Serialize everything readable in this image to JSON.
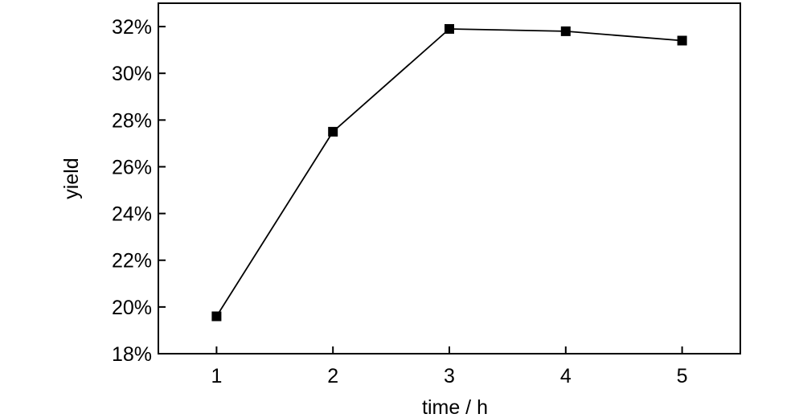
{
  "chart_data": {
    "type": "line",
    "title": "",
    "xlabel": "time / h",
    "ylabel": "yield",
    "x": [
      1,
      2,
      3,
      4,
      5
    ],
    "xticks": [
      "1",
      "2",
      "3",
      "4",
      "5"
    ],
    "xlim": [
      0.5,
      5.5
    ],
    "ylim": [
      18,
      33
    ],
    "yticks": [
      18,
      20,
      22,
      24,
      26,
      28,
      30,
      32
    ],
    "ytick_labels": [
      "18%",
      "20%",
      "22%",
      "24%",
      "26%",
      "28%",
      "30%",
      "32%"
    ],
    "series": [
      {
        "values": [
          19.6,
          27.5,
          31.9,
          31.8,
          31.4
        ],
        "marker": "square",
        "color": "#000000"
      }
    ],
    "grid": false,
    "legend": "none"
  }
}
